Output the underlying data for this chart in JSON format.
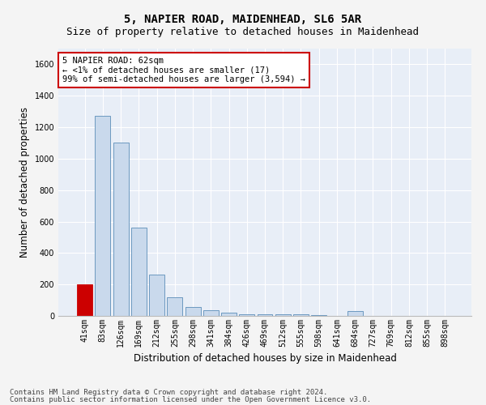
{
  "title1": "5, NAPIER ROAD, MAIDENHEAD, SL6 5AR",
  "title2": "Size of property relative to detached houses in Maidenhead",
  "xlabel": "Distribution of detached houses by size in Maidenhead",
  "ylabel": "Number of detached properties",
  "categories": [
    "41sqm",
    "83sqm",
    "126sqm",
    "169sqm",
    "212sqm",
    "255sqm",
    "298sqm",
    "341sqm",
    "384sqm",
    "426sqm",
    "469sqm",
    "512sqm",
    "555sqm",
    "598sqm",
    "641sqm",
    "684sqm",
    "727sqm",
    "769sqm",
    "812sqm",
    "855sqm",
    "898sqm"
  ],
  "values": [
    200,
    1270,
    1100,
    560,
    265,
    120,
    55,
    35,
    20,
    12,
    10,
    10,
    8,
    5,
    0,
    30,
    0,
    0,
    0,
    0,
    0
  ],
  "bar_color": "#c9d9ec",
  "bar_edge_color": "#5b8db8",
  "highlight_bar_index": 0,
  "highlight_color": "#cc0000",
  "annotation_text": "5 NAPIER ROAD: 62sqm\n← <1% of detached houses are smaller (17)\n99% of semi-detached houses are larger (3,594) →",
  "annotation_box_color": "#ffffff",
  "annotation_box_edge_color": "#cc0000",
  "ylim": [
    0,
    1700
  ],
  "yticks": [
    0,
    200,
    400,
    600,
    800,
    1000,
    1200,
    1400,
    1600
  ],
  "footer1": "Contains HM Land Registry data © Crown copyright and database right 2024.",
  "footer2": "Contains public sector information licensed under the Open Government Licence v3.0.",
  "fig_bg_color": "#f4f4f4",
  "axes_bg_color": "#e8eef7",
  "grid_color": "#ffffff",
  "title_fontsize": 10,
  "subtitle_fontsize": 9,
  "axis_label_fontsize": 8.5,
  "tick_fontsize": 7,
  "annot_fontsize": 7.5,
  "footer_fontsize": 6.5
}
